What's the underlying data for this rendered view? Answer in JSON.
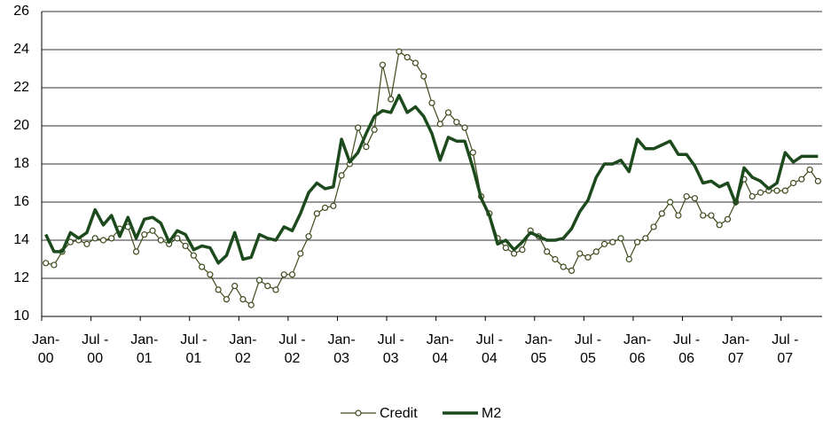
{
  "chart_data": {
    "type": "line",
    "categories": [
      "Jan-\n00",
      null,
      null,
      null,
      null,
      null,
      "Jul -\n00",
      null,
      null,
      null,
      null,
      null,
      "Jan-\n01",
      null,
      null,
      null,
      null,
      null,
      "Jul -\n01",
      null,
      null,
      null,
      null,
      null,
      "Jan-\n02",
      null,
      null,
      null,
      null,
      null,
      "Jul -\n02",
      null,
      null,
      null,
      null,
      null,
      "Jan-\n03",
      null,
      null,
      null,
      null,
      null,
      "Jul -\n03",
      null,
      null,
      null,
      null,
      null,
      "Jan-\n04",
      null,
      null,
      null,
      null,
      null,
      "Jul -\n04",
      null,
      null,
      null,
      null,
      null,
      "Jan-\n05",
      null,
      null,
      null,
      null,
      null,
      "Jul -\n05",
      null,
      null,
      null,
      null,
      null,
      "Jan-\n06",
      null,
      null,
      null,
      null,
      null,
      "Jul -\n06",
      null,
      null,
      null,
      null,
      null,
      "Jan-\n07",
      null,
      null,
      null,
      null,
      null,
      "Jul -\n07",
      null,
      null,
      null,
      null
    ],
    "series": [
      {
        "name": "Credit",
        "color": "#3d4a1c",
        "line_width": 1.2,
        "markers": "circle",
        "values": [
          12.8,
          12.7,
          13.4,
          13.9,
          14.0,
          13.8,
          14.1,
          14.0,
          14.1,
          14.6,
          14.7,
          13.4,
          14.3,
          14.5,
          14.0,
          13.8,
          14.1,
          13.7,
          13.2,
          12.6,
          12.2,
          11.4,
          10.9,
          11.6,
          10.9,
          10.6,
          11.9,
          11.6,
          11.4,
          12.2,
          12.2,
          13.3,
          14.2,
          15.4,
          15.7,
          15.8,
          17.4,
          18.0,
          19.9,
          18.9,
          19.8,
          23.2,
          21.4,
          23.9,
          23.6,
          23.3,
          22.6,
          21.2,
          20.1,
          20.7,
          20.2,
          19.9,
          18.6,
          16.3,
          15.4,
          14.1,
          13.6,
          13.3,
          13.5,
          14.5,
          14.2,
          13.4,
          13.0,
          12.6,
          12.4,
          13.3,
          13.1,
          13.4,
          13.8,
          13.9,
          14.1,
          13.0,
          13.9,
          14.1,
          14.7,
          15.4,
          16.0,
          15.3,
          16.3,
          16.2,
          15.3,
          15.3,
          14.8,
          15.1,
          16.0,
          17.2,
          16.3,
          16.5,
          16.6,
          16.6,
          16.6,
          17.0,
          17.2,
          17.7,
          17.1
        ]
      },
      {
        "name": "M2",
        "color": "#1d4a1d",
        "line_width": 3.5,
        "values": [
          14.3,
          13.4,
          13.4,
          14.4,
          14.1,
          14.4,
          15.6,
          14.8,
          15.3,
          14.2,
          15.2,
          14.1,
          15.1,
          15.2,
          14.9,
          13.9,
          14.5,
          14.3,
          13.5,
          13.7,
          13.6,
          12.8,
          13.2,
          14.4,
          13.0,
          13.1,
          14.3,
          14.1,
          14.0,
          14.7,
          14.5,
          15.4,
          16.5,
          17.0,
          16.7,
          16.8,
          19.3,
          18.1,
          18.6,
          19.6,
          20.5,
          20.8,
          20.7,
          21.6,
          20.7,
          21.0,
          20.5,
          19.6,
          18.2,
          19.4,
          19.2,
          19.2,
          17.8,
          16.2,
          15.3,
          13.8,
          14.0,
          13.5,
          13.9,
          14.4,
          14.2,
          14.0,
          14.0,
          14.1,
          14.6,
          15.5,
          16.1,
          17.3,
          18.0,
          18.0,
          18.2,
          17.6,
          19.3,
          18.8,
          18.8,
          19.0,
          19.2,
          18.5,
          18.5,
          17.9,
          17.0,
          17.1,
          16.8,
          17.0,
          15.9,
          17.8,
          17.3,
          17.1,
          16.7,
          17.0,
          18.6,
          18.1,
          18.4,
          18.4,
          18.4
        ]
      }
    ],
    "ylim": [
      10,
      26
    ],
    "yticks": [
      10,
      12,
      14,
      16,
      18,
      20,
      22,
      24,
      26
    ],
    "grid": true,
    "legend": "bottom"
  }
}
